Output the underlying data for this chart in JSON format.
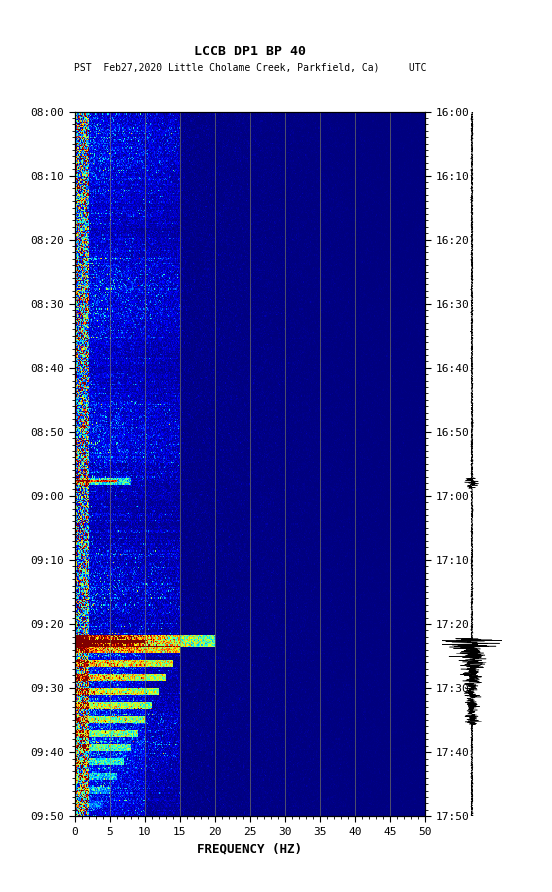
{
  "title_line1": "LCCB DP1 BP 40",
  "title_line2": "PST  Feb27,2020 Little Cholame Creek, Parkfield, Ca)     UTC",
  "xlabel": "FREQUENCY (HZ)",
  "freq_min": 0,
  "freq_max": 50,
  "freq_ticks": [
    0,
    5,
    10,
    15,
    20,
    25,
    30,
    35,
    40,
    45,
    50
  ],
  "left_time_labels": [
    "08:00",
    "08:10",
    "08:20",
    "08:30",
    "08:40",
    "08:50",
    "09:00",
    "09:10",
    "09:20",
    "09:30",
    "09:40",
    "09:50"
  ],
  "right_time_labels": [
    "16:00",
    "16:10",
    "16:20",
    "16:30",
    "16:40",
    "16:50",
    "17:00",
    "17:10",
    "17:20",
    "17:30",
    "17:40",
    "17:50"
  ],
  "n_time_bins": 600,
  "n_freq_bins": 500,
  "background_color": "#ffffff",
  "spectrogram_cmap": "jet",
  "vertical_lines_freq": [
    5,
    10,
    15,
    20,
    25,
    30,
    35,
    40,
    45
  ],
  "vertical_line_color": "#999955",
  "vertical_line_alpha": 0.6,
  "usgs_color": "#1a6b3c",
  "xlabel_fontsize": 9,
  "tick_label_fontsize": 8
}
